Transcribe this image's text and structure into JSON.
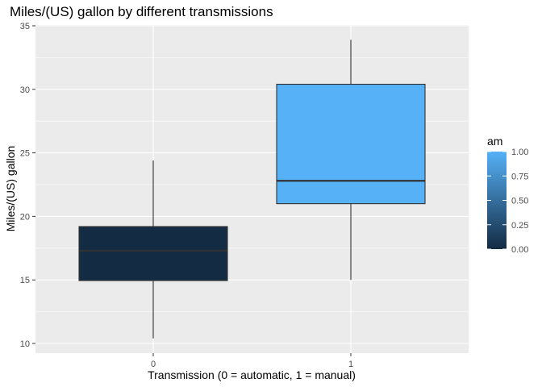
{
  "chart_data": {
    "type": "box",
    "title": "Miles/(US) gallon by different transmissions",
    "xlabel": "Transmission (0 = automatic, 1 = manual)",
    "ylabel": "Miles/(US) gallon",
    "ylim": [
      9.3,
      35
    ],
    "yticks": [
      10,
      15,
      20,
      25,
      30,
      35
    ],
    "ytick_labels": [
      "10",
      "15",
      "20",
      "25",
      "30",
      "35"
    ],
    "categories": [
      "0",
      "1"
    ],
    "boxes": [
      {
        "category": "0",
        "min": 10.4,
        "q1": 14.95,
        "median": 17.3,
        "q3": 19.2,
        "max": 24.4,
        "am": 0
      },
      {
        "category": "1",
        "min": 15.0,
        "q1": 21.0,
        "median": 22.8,
        "q3": 30.4,
        "max": 33.9,
        "am": 1
      }
    ],
    "legend": {
      "title": "am",
      "labels": [
        "1.00",
        "0.75",
        "0.50",
        "0.25",
        "0.00"
      ],
      "values": [
        1.0,
        0.75,
        0.5,
        0.25,
        0.0
      ],
      "placement": "right",
      "color_low": "#132B43",
      "color_high": "#56B1F7"
    },
    "grid": true,
    "colors": {
      "panel": "#ebebeb",
      "grid_major": "#ffffff",
      "tick_text": "#4d4d4d"
    }
  }
}
